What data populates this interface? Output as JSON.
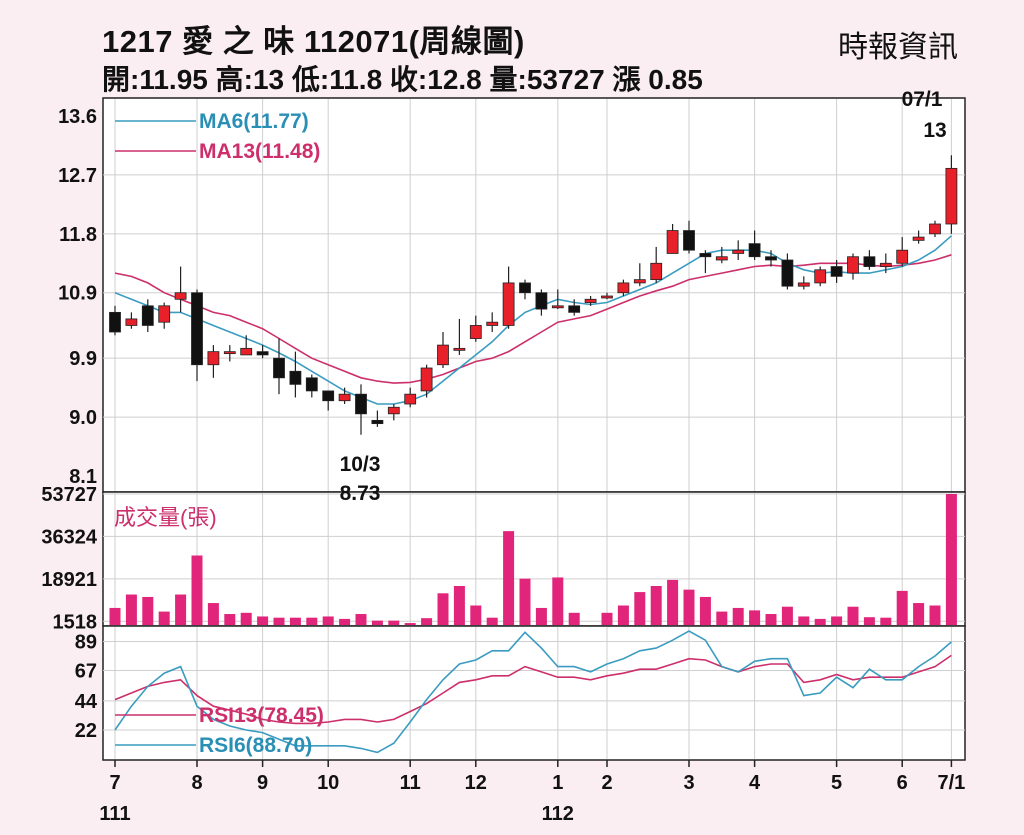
{
  "header": {
    "title": "1217  愛 之 味 112071(周線圖)",
    "ohlc": "開:11.95 高:13 低:11.8 收:12.8 量:53727 漲 0.85",
    "source": "時報資訊"
  },
  "colors": {
    "background": "#fbeef3",
    "up": "#e8202a",
    "down": "#111111",
    "ma6": "#3a9cc0",
    "ma13": "#cc2f6b",
    "volume": "#e0257a",
    "rsi13": "#cc2f6b",
    "rsi6": "#3a9cc0"
  },
  "chart_data": [
    {
      "type": "candlestick",
      "panel": "price",
      "ylim": [
        8.1,
        13.6
      ],
      "yticks": [
        "13.6",
        "12.7",
        "11.8",
        "10.9",
        "9.9",
        "9.0",
        "8.1"
      ],
      "ytick_values": [
        13.6,
        12.7,
        11.8,
        10.9,
        9.9,
        9.0,
        8.1
      ],
      "legend": [
        {
          "key": "ma6",
          "label": "MA6(11.77)"
        },
        {
          "key": "ma13",
          "label": "MA13(11.48)"
        }
      ],
      "annotations": {
        "high_date": "07/1",
        "high_value": "13",
        "low_date": "10/3",
        "low_value": "8.73"
      },
      "candles": [
        [
          10.6,
          10.3,
          10.7,
          10.25
        ],
        [
          10.4,
          10.5,
          10.6,
          10.35
        ],
        [
          10.7,
          10.4,
          10.8,
          10.3
        ],
        [
          10.45,
          10.7,
          10.75,
          10.35
        ],
        [
          10.8,
          10.9,
          11.3,
          10.6
        ],
        [
          10.9,
          9.8,
          10.95,
          9.55
        ],
        [
          9.8,
          10.0,
          10.1,
          9.6
        ],
        [
          10.0,
          10.0,
          10.1,
          9.85
        ],
        [
          9.95,
          10.05,
          10.25,
          9.95
        ],
        [
          10.0,
          9.95,
          10.1,
          9.9
        ],
        [
          9.9,
          9.6,
          10.2,
          9.35
        ],
        [
          9.7,
          9.5,
          10.0,
          9.3
        ],
        [
          9.6,
          9.4,
          9.65,
          9.3
        ],
        [
          9.4,
          9.25,
          9.4,
          9.1
        ],
        [
          9.25,
          9.35,
          9.45,
          9.2
        ],
        [
          9.35,
          9.05,
          9.5,
          8.73
        ],
        [
          8.95,
          8.9,
          9.1,
          8.85
        ],
        [
          9.05,
          9.15,
          9.2,
          8.95
        ],
        [
          9.2,
          9.35,
          9.45,
          9.15
        ],
        [
          9.4,
          9.75,
          9.8,
          9.3
        ],
        [
          9.8,
          10.1,
          10.3,
          9.75
        ],
        [
          10.05,
          10.05,
          10.5,
          9.95
        ],
        [
          10.2,
          10.4,
          10.55,
          10.15
        ],
        [
          10.4,
          10.45,
          10.6,
          10.3
        ],
        [
          10.4,
          11.05,
          11.3,
          10.35
        ],
        [
          11.05,
          10.9,
          11.1,
          10.8
        ],
        [
          10.9,
          10.65,
          10.95,
          10.55
        ],
        [
          10.7,
          10.7,
          10.95,
          10.65
        ],
        [
          10.7,
          10.6,
          10.8,
          10.55
        ],
        [
          10.75,
          10.8,
          10.85,
          10.7
        ],
        [
          10.85,
          10.85,
          10.9,
          10.8
        ],
        [
          10.9,
          11.05,
          11.1,
          10.85
        ],
        [
          11.05,
          11.1,
          11.35,
          11.0
        ],
        [
          11.1,
          11.35,
          11.6,
          11.05
        ],
        [
          11.5,
          11.85,
          11.95,
          11.5
        ],
        [
          11.85,
          11.55,
          12.0,
          11.5
        ],
        [
          11.5,
          11.45,
          11.55,
          11.2
        ],
        [
          11.4,
          11.45,
          11.6,
          11.35
        ],
        [
          11.5,
          11.55,
          11.7,
          11.4
        ],
        [
          11.65,
          11.45,
          11.85,
          11.4
        ],
        [
          11.45,
          11.4,
          11.55,
          11.3
        ],
        [
          11.4,
          11.0,
          11.5,
          10.95
        ],
        [
          11.0,
          11.05,
          11.15,
          10.95
        ],
        [
          11.05,
          11.25,
          11.3,
          11.0
        ],
        [
          11.3,
          11.15,
          11.4,
          11.05
        ],
        [
          11.2,
          11.45,
          11.5,
          11.1
        ],
        [
          11.45,
          11.3,
          11.55,
          11.25
        ],
        [
          11.3,
          11.35,
          11.5,
          11.2
        ],
        [
          11.35,
          11.55,
          11.75,
          11.3
        ],
        [
          11.7,
          11.75,
          11.85,
          11.65
        ],
        [
          11.8,
          11.95,
          12.0,
          11.75
        ],
        [
          11.95,
          12.8,
          13.0,
          11.8
        ]
      ],
      "ma6": [
        10.9,
        10.8,
        10.7,
        10.6,
        10.6,
        10.5,
        10.4,
        10.3,
        10.2,
        10.1,
        9.98,
        9.85,
        9.7,
        9.55,
        9.4,
        9.3,
        9.2,
        9.2,
        9.25,
        9.35,
        9.55,
        9.75,
        9.95,
        10.15,
        10.4,
        10.6,
        10.7,
        10.8,
        10.75,
        10.72,
        10.75,
        10.85,
        10.95,
        11.05,
        11.2,
        11.35,
        11.5,
        11.55,
        11.55,
        11.55,
        11.5,
        11.35,
        11.25,
        11.2,
        11.22,
        11.2,
        11.2,
        11.25,
        11.3,
        11.4,
        11.55,
        11.77
      ],
      "ma13": [
        11.2,
        11.15,
        11.05,
        10.9,
        10.8,
        10.7,
        10.6,
        10.55,
        10.45,
        10.35,
        10.2,
        10.05,
        9.9,
        9.8,
        9.7,
        9.6,
        9.55,
        9.52,
        9.53,
        9.58,
        9.65,
        9.75,
        9.85,
        9.9,
        10.0,
        10.15,
        10.3,
        10.45,
        10.5,
        10.55,
        10.65,
        10.75,
        10.85,
        10.93,
        11.0,
        11.1,
        11.15,
        11.2,
        11.25,
        11.3,
        11.32,
        11.3,
        11.32,
        11.35,
        11.35,
        11.35,
        11.32,
        11.3,
        11.32,
        11.35,
        11.4,
        11.48
      ]
    },
    {
      "type": "bar",
      "panel": "volume",
      "label": "成交量(張)",
      "ylim": [
        0,
        53727
      ],
      "yticks": [
        "53727",
        "36324",
        "18921",
        "1518"
      ],
      "ytick_values": [
        53727,
        36324,
        18921,
        1518
      ],
      "values": [
        7000,
        12500,
        11500,
        5500,
        12500,
        28500,
        9000,
        4500,
        5000,
        3500,
        3000,
        3000,
        3000,
        3500,
        2500,
        4500,
        1800,
        1800,
        800,
        2800,
        13000,
        16000,
        8000,
        3000,
        38500,
        19000,
        7000,
        19500,
        5000,
        0,
        5000,
        8000,
        13500,
        16000,
        18500,
        14500,
        11500,
        5500,
        7000,
        6000,
        4500,
        7500,
        3500,
        2500,
        3500,
        7500,
        3200,
        3000,
        14000,
        9000,
        8000,
        53727
      ]
    },
    {
      "type": "line",
      "panel": "rsi",
      "ylim": [
        0,
        100
      ],
      "yticks": [
        "89",
        "67",
        "44",
        "22"
      ],
      "ytick_values": [
        89,
        67,
        44,
        22
      ],
      "legend": [
        {
          "key": "rsi13",
          "label": "RSI13(78.45)"
        },
        {
          "key": "rsi6",
          "label": "RSI6(88.70)"
        }
      ],
      "rsi6": [
        22,
        40,
        55,
        65,
        70,
        40,
        30,
        25,
        22,
        20,
        15,
        10,
        10,
        10,
        10,
        8,
        5,
        12,
        28,
        45,
        60,
        72,
        75,
        82,
        82,
        96,
        84,
        70,
        70,
        66,
        72,
        76,
        82,
        84,
        90,
        97,
        90,
        70,
        66,
        74,
        76,
        76,
        48,
        50,
        62,
        54,
        68,
        60,
        60,
        70,
        78,
        88.7
      ],
      "rsi13": [
        45,
        50,
        55,
        58,
        60,
        48,
        40,
        37,
        34,
        30,
        28,
        27,
        27,
        28,
        30,
        30,
        28,
        30,
        36,
        42,
        50,
        58,
        60,
        63,
        63,
        70,
        66,
        62,
        62,
        60,
        63,
        65,
        68,
        68,
        72,
        76,
        75,
        70,
        66,
        70,
        72,
        72,
        58,
        60,
        64,
        60,
        62,
        62,
        62,
        66,
        70,
        78.45
      ]
    },
    {
      "type": "axis",
      "panel": "x",
      "months": [
        {
          "label": "7",
          "week": 0
        },
        {
          "label": "8",
          "week": 5
        },
        {
          "label": "9",
          "week": 9
        },
        {
          "label": "10",
          "week": 13
        },
        {
          "label": "11",
          "week": 18
        },
        {
          "label": "12",
          "week": 22
        },
        {
          "label": "1",
          "week": 27
        },
        {
          "label": "2",
          "week": 30
        },
        {
          "label": "3",
          "week": 35
        },
        {
          "label": "4",
          "week": 39
        },
        {
          "label": "5",
          "week": 44
        },
        {
          "label": "6",
          "week": 48
        },
        {
          "label": "7/1",
          "week": 51
        }
      ],
      "years": [
        {
          "label": "111",
          "week": 0
        },
        {
          "label": "112",
          "week": 27
        }
      ]
    }
  ]
}
